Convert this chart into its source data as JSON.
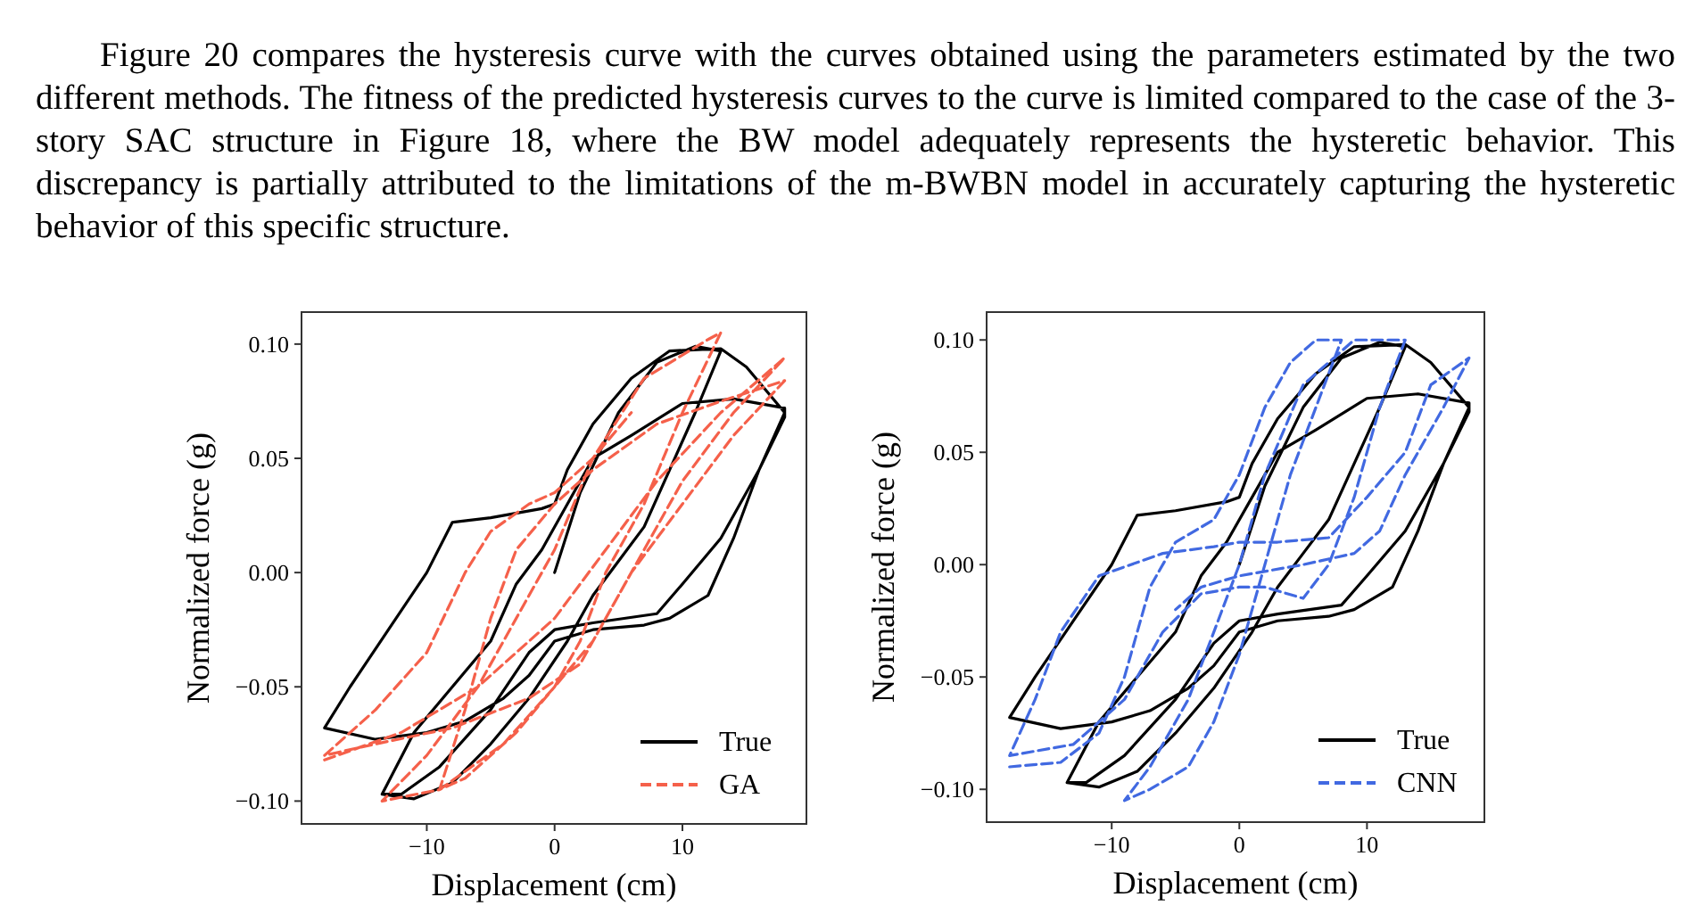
{
  "chart_data": [
    {
      "type": "line",
      "xlabel": "Displacement (cm)",
      "ylabel": "Normalized force (g)",
      "xlim": [
        -19.8,
        19.7
      ],
      "ylim": [
        -0.11,
        0.114
      ],
      "xticks": [
        {
          "value": -10,
          "label": "−10"
        },
        {
          "value": 0,
          "label": "0"
        },
        {
          "value": 10,
          "label": "10"
        }
      ],
      "yticks": [
        {
          "value": -0.1,
          "label": "−0.10"
        },
        {
          "value": -0.05,
          "label": "−0.05"
        },
        {
          "value": 0,
          "label": "0.00"
        },
        {
          "value": 0.05,
          "label": "0.05"
        },
        {
          "value": 0.1,
          "label": "0.10"
        }
      ],
      "legend": "bottom right",
      "grid": false,
      "annotations": [
        "Figure 20 compares the hysteresis curve with the curves obtained using the parameters estimated by the two different methods. The fitness of the predicted hysteresis curves to the curve is limited compared to the case of the 3-story SAC structure in Figure 18, where the BW model adequately represents the hysteretic behavior. This discrepancy is partially attributed to the limitations of the m-BWBN model in accurately capturing the hysteretic behavior of this specific structure."
      ],
      "series": [
        {
          "name": "True",
          "color": "#000000",
          "line_style": "solid",
          "x": [
            0,
            2,
            5,
            8,
            11,
            13,
            11,
            9,
            7,
            5,
            3,
            1,
            -2,
            -5,
            -8,
            -11,
            -13.5,
            -11,
            -8,
            -5,
            -3,
            -1,
            1,
            3,
            6,
            10,
            14,
            18,
            18,
            16,
            14,
            12,
            9,
            7,
            3,
            0,
            -2,
            -4,
            -7,
            -10,
            -14,
            -18,
            -16,
            -13,
            -10,
            -8,
            -5,
            -1,
            0,
            1,
            3,
            6,
            9,
            13,
            15,
            18,
            16,
            13,
            10,
            8,
            3,
            0,
            -2,
            -5,
            -9,
            -12,
            -13.5
          ],
          "values": [
            0,
            0.035,
            0.07,
            0.092,
            0.099,
            0.097,
            0.07,
            0.045,
            0.02,
            0.005,
            -0.01,
            -0.03,
            -0.055,
            -0.075,
            -0.092,
            -0.099,
            -0.097,
            -0.07,
            -0.05,
            -0.03,
            -0.005,
            0.01,
            0.03,
            0.05,
            0.06,
            0.074,
            0.076,
            0.072,
            0.068,
            0.045,
            0.015,
            -0.01,
            -0.02,
            -0.023,
            -0.025,
            -0.03,
            -0.045,
            -0.055,
            -0.065,
            -0.07,
            -0.073,
            -0.068,
            -0.05,
            -0.025,
            0,
            0.022,
            0.024,
            0.028,
            0.03,
            0.045,
            0.065,
            0.085,
            0.097,
            0.098,
            0.09,
            0.07,
            0.045,
            0.015,
            -0.005,
            -0.018,
            -0.022,
            -0.025,
            -0.035,
            -0.06,
            -0.085,
            -0.097,
            -0.097
          ]
        },
        {
          "name": "GA",
          "color": "#f5604a",
          "line_style": "dashed",
          "x": [
            -18,
            -12,
            -6,
            0,
            4,
            8,
            13,
            18,
            14,
            10,
            6,
            3,
            0,
            -4,
            -9,
            -13.5,
            -10,
            -6,
            -3,
            0,
            3,
            7,
            12,
            13,
            10,
            7,
            4,
            2,
            0,
            -3,
            -7,
            -9,
            -7,
            -5,
            -3,
            0,
            3,
            8,
            13,
            18,
            14,
            10,
            6,
            2,
            -2,
            -8,
            -14,
            -18,
            -14,
            -10,
            -7,
            -5,
            -2,
            0,
            3,
            6
          ],
          "values": [
            -0.082,
            -0.07,
            -0.05,
            -0.02,
            0.01,
            0.04,
            0.07,
            0.094,
            0.07,
            0.04,
            0,
            -0.03,
            -0.05,
            -0.075,
            -0.095,
            -0.1,
            -0.08,
            -0.05,
            -0.02,
            0.01,
            0.05,
            0.085,
            0.102,
            0.105,
            0.07,
            0.03,
            0,
            -0.03,
            -0.05,
            -0.07,
            -0.09,
            -0.095,
            -0.06,
            -0.02,
            0.01,
            0.03,
            0.045,
            0.065,
            0.075,
            0.084,
            0.06,
            0.03,
            0,
            -0.04,
            -0.055,
            -0.068,
            -0.075,
            -0.08,
            -0.06,
            -0.035,
            0,
            0.018,
            0.03,
            0.035,
            0.05,
            0.07
          ]
        }
      ]
    },
    {
      "type": "line",
      "xlabel": "Displacement (cm)",
      "ylabel": "Normalized force (g)",
      "xlim": [
        -19.8,
        19.2
      ],
      "ylim": [
        -0.1146,
        0.1124
      ],
      "xticks": [
        {
          "value": -10,
          "label": "−10"
        },
        {
          "value": 0,
          "label": "0"
        },
        {
          "value": 10,
          "label": "10"
        }
      ],
      "yticks": [
        {
          "value": -0.1,
          "label": "−0.10"
        },
        {
          "value": -0.05,
          "label": "−0.05"
        },
        {
          "value": 0,
          "label": "0.00"
        },
        {
          "value": 0.05,
          "label": "0.05"
        },
        {
          "value": 0.1,
          "label": "0.10"
        }
      ],
      "legend": "bottom right",
      "grid": false,
      "series": [
        {
          "name": "True",
          "color": "#000000",
          "line_style": "solid",
          "x": [
            0,
            2,
            5,
            8,
            11,
            13,
            11,
            9,
            7,
            5,
            3,
            1,
            -2,
            -5,
            -8,
            -11,
            -13.5,
            -11,
            -8,
            -5,
            -3,
            -1,
            1,
            3,
            6,
            10,
            14,
            18,
            18,
            16,
            14,
            12,
            9,
            7,
            3,
            0,
            -2,
            -4,
            -7,
            -10,
            -14,
            -18,
            -16,
            -13,
            -10,
            -8,
            -5,
            -1,
            0,
            1,
            3,
            6,
            9,
            13,
            15,
            18,
            16,
            13,
            10,
            8,
            3,
            0,
            -2,
            -5,
            -9,
            -12,
            -13.5
          ],
          "values": [
            0,
            0.035,
            0.07,
            0.092,
            0.099,
            0.097,
            0.07,
            0.045,
            0.02,
            0.005,
            -0.01,
            -0.03,
            -0.055,
            -0.075,
            -0.092,
            -0.099,
            -0.097,
            -0.07,
            -0.05,
            -0.03,
            -0.005,
            0.01,
            0.03,
            0.05,
            0.06,
            0.074,
            0.076,
            0.072,
            0.068,
            0.045,
            0.015,
            -0.01,
            -0.02,
            -0.023,
            -0.025,
            -0.03,
            -0.045,
            -0.055,
            -0.065,
            -0.07,
            -0.073,
            -0.068,
            -0.05,
            -0.025,
            0,
            0.022,
            0.024,
            0.028,
            0.03,
            0.045,
            0.065,
            0.085,
            0.097,
            0.098,
            0.09,
            0.07,
            0.045,
            0.015,
            -0.005,
            -0.018,
            -0.022,
            -0.025,
            -0.035,
            -0.06,
            -0.085,
            -0.097,
            -0.097
          ]
        },
        {
          "name": "CNN",
          "color": "#4169e1",
          "line_style": "dashed",
          "x": [
            -18,
            -14,
            -11,
            -9,
            -7,
            -5,
            -2,
            0,
            2,
            4,
            6,
            8,
            6,
            4,
            2,
            0,
            -2,
            -4,
            -7,
            -9,
            -7,
            -4,
            -2,
            0,
            2,
            5,
            9,
            13,
            11,
            9,
            7,
            5,
            2,
            0,
            -3,
            -6,
            -9,
            -13,
            -18,
            -16,
            -14,
            -11,
            -6,
            -2,
            0,
            3,
            7,
            10,
            13,
            15,
            18,
            16,
            13,
            11,
            9,
            5,
            0,
            -3,
            -5
          ],
          "values": [
            -0.09,
            -0.088,
            -0.075,
            -0.05,
            -0.01,
            0.01,
            0.02,
            0.04,
            0.07,
            0.09,
            0.1,
            0.1,
            0.07,
            0.04,
            0,
            -0.04,
            -0.07,
            -0.09,
            -0.1,
            -0.105,
            -0.09,
            -0.06,
            -0.03,
            0,
            0.04,
            0.08,
            0.1,
            0.1,
            0.07,
            0.03,
            0,
            -0.015,
            -0.01,
            -0.01,
            -0.013,
            -0.03,
            -0.06,
            -0.08,
            -0.085,
            -0.06,
            -0.03,
            -0.005,
            0.005,
            0.008,
            0.01,
            0.01,
            0.012,
            0.03,
            0.05,
            0.08,
            0.092,
            0.07,
            0.04,
            0.015,
            0.005,
            0,
            -0.005,
            -0.01,
            -0.02
          ]
        }
      ]
    }
  ]
}
